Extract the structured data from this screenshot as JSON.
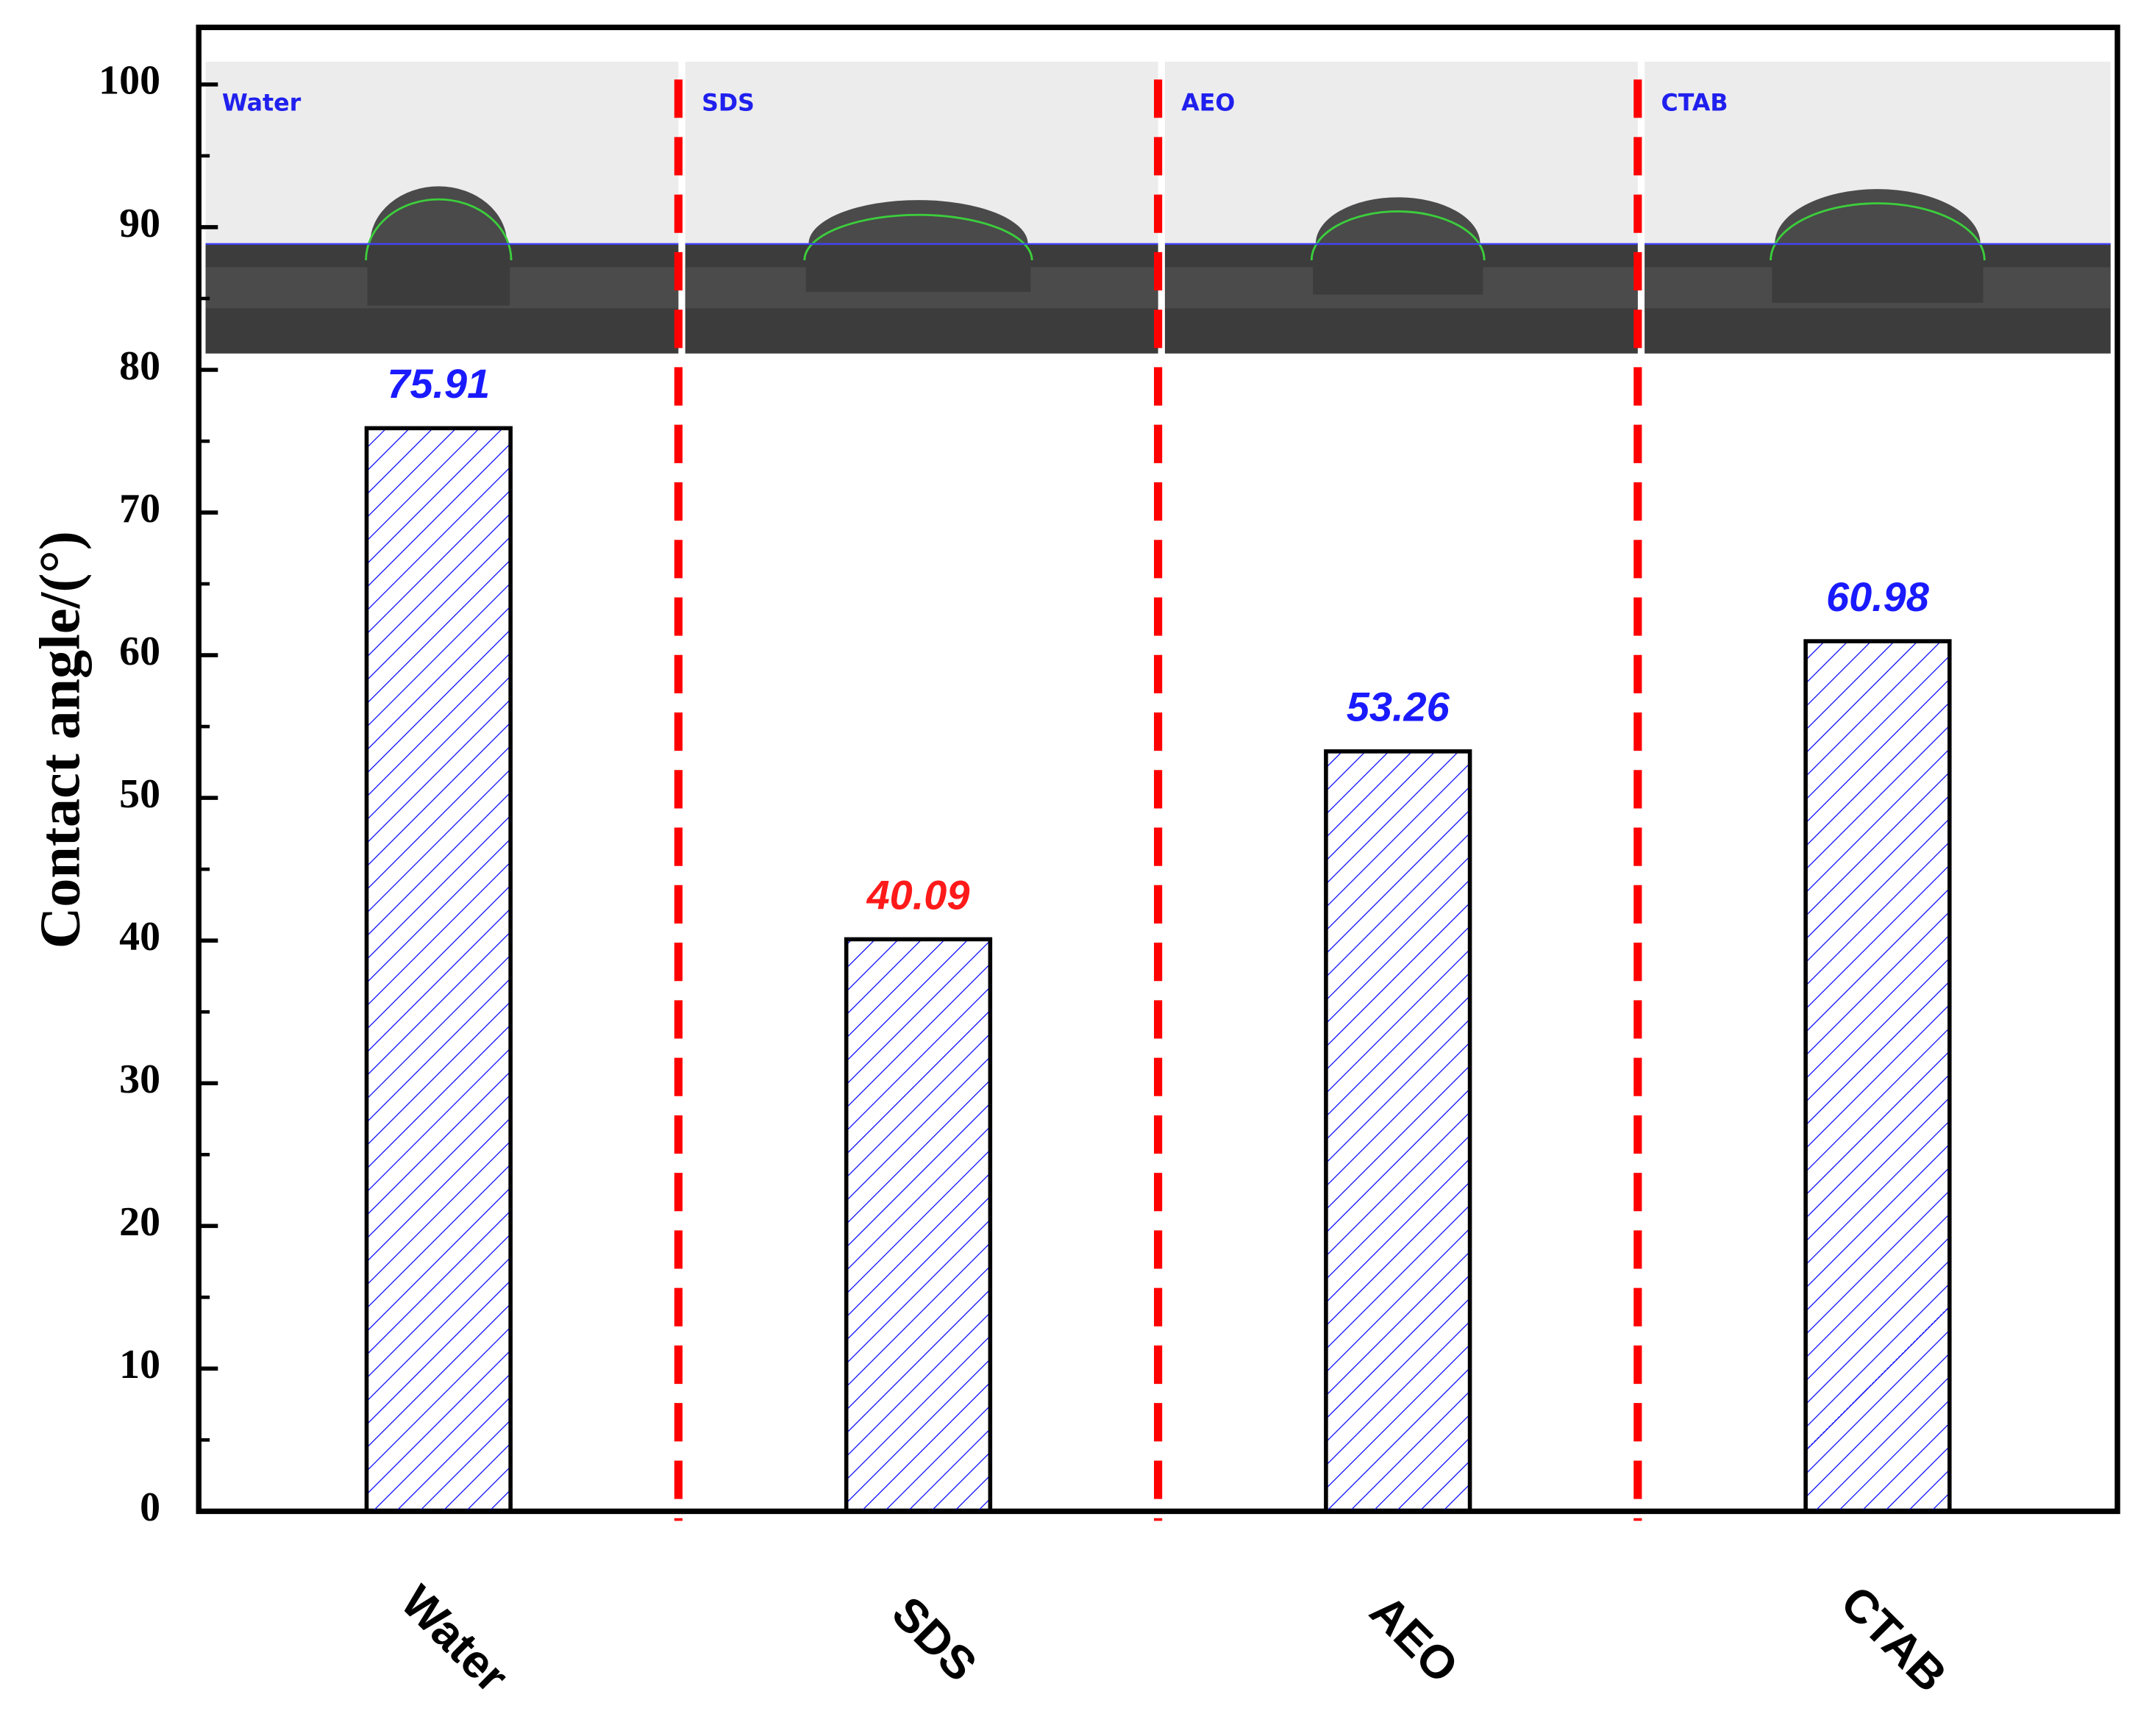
{
  "chart_data": {
    "type": "bar",
    "y_label": "Contact angle/(°)",
    "categories": [
      "Water",
      "SDS",
      "AEO",
      "CTAB"
    ],
    "image_labels": [
      "Water",
      "SDS",
      "AEO",
      "CTAB"
    ],
    "series": [
      {
        "color": "#0000ff",
        "values": [
          75.91,
          40.09,
          53.26,
          60.98
        ]
      }
    ],
    "value_label_colors": [
      "#1a1aff",
      "#ff1a1a",
      "#1a1aff",
      "#1a1aff"
    ],
    "ylim": [
      0,
      104
    ],
    "yticks": [
      0,
      10,
      20,
      30,
      40,
      50,
      60,
      70,
      80,
      90,
      100
    ],
    "divider_color": "#ff0000"
  }
}
